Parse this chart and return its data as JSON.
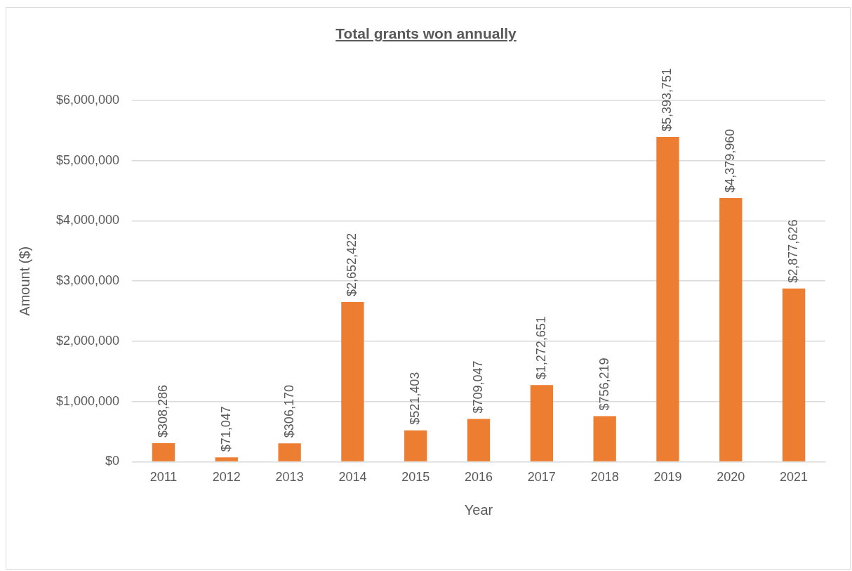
{
  "chart_data": {
    "type": "bar",
    "title": "Total grants won annually",
    "xlabel": "Year",
    "ylabel": "Amount ($)",
    "categories": [
      "2011",
      "2012",
      "2013",
      "2014",
      "2015",
      "2016",
      "2017",
      "2018",
      "2019",
      "2020",
      "2021"
    ],
    "values": [
      308286,
      71047,
      306170,
      2652422,
      521403,
      709047,
      1272651,
      756219,
      5393751,
      4379960,
      2877626
    ],
    "value_labels": [
      "$308,286",
      "$71,047",
      "$306,170",
      "$2,652,422",
      "$521,403",
      "$709,047",
      "$1,272,651",
      "$756,219",
      "$5,393,751",
      "$4,379,960",
      "$2,877,626"
    ],
    "color": "#ed7d31",
    "ylim": [
      0,
      6000000
    ],
    "yticks": [
      {
        "value": 0,
        "label": "$0"
      },
      {
        "value": 1000000,
        "label": "$1,000,000"
      },
      {
        "value": 2000000,
        "label": "$2,000,000"
      },
      {
        "value": 3000000,
        "label": "$3,000,000"
      },
      {
        "value": 4000000,
        "label": "$4,000,000"
      },
      {
        "value": 5000000,
        "label": "$5,000,000"
      },
      {
        "value": 6000000,
        "label": "$6,000,000"
      }
    ],
    "grid": "y",
    "legend": false
  }
}
